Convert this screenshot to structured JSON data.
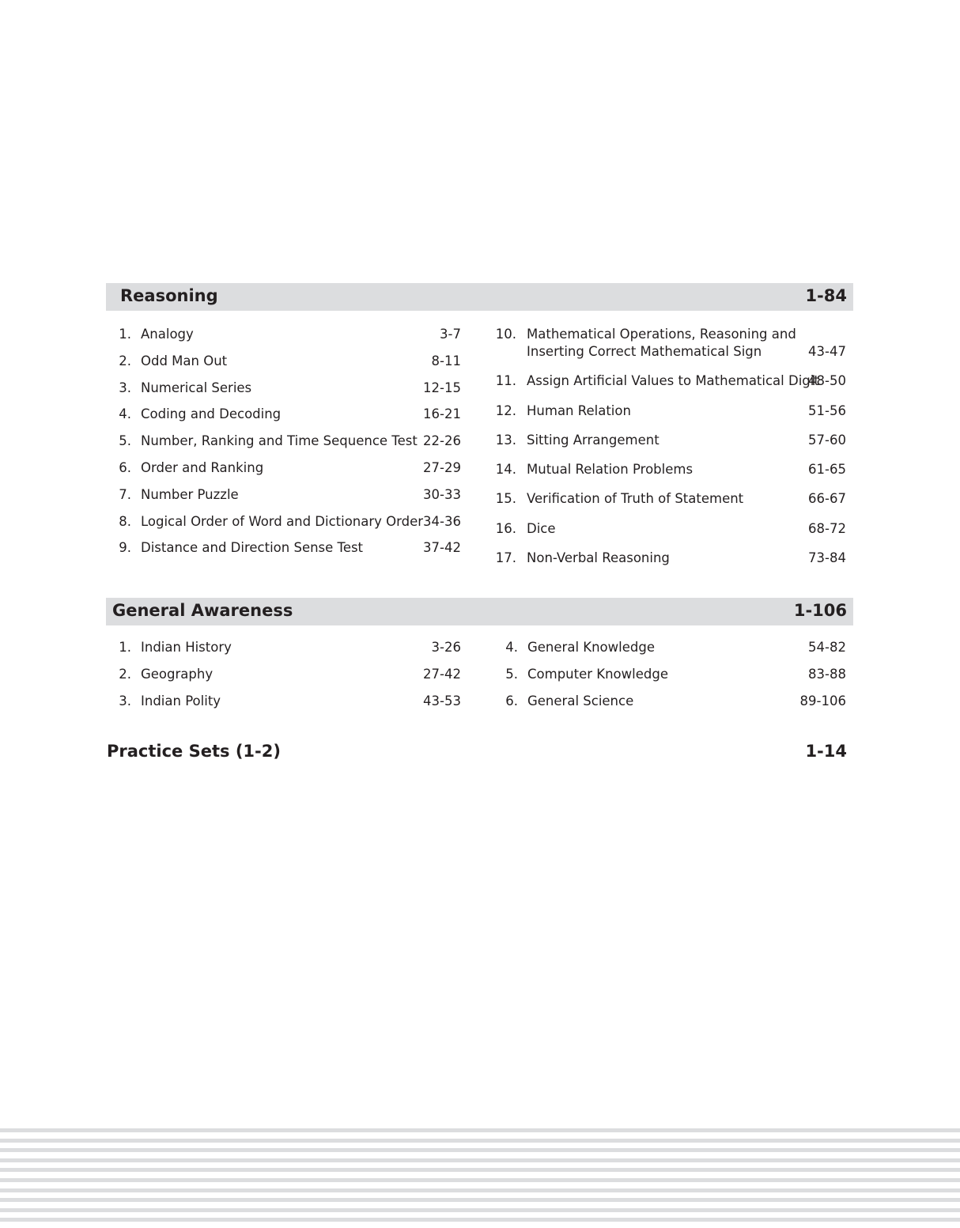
{
  "sections": [
    {
      "title": "Reasoning",
      "pages": "1-84",
      "left": [
        {
          "num": "1.",
          "title": "Analogy",
          "pages": "3-7"
        },
        {
          "num": "2.",
          "title": "Odd Man Out",
          "pages": "8-11"
        },
        {
          "num": "3.",
          "title": "Numerical Series",
          "pages": "12-15"
        },
        {
          "num": "4.",
          "title": "Coding and Decoding",
          "pages": "16-21"
        },
        {
          "num": "5.",
          "title": "Number, Ranking and Time Sequence Test",
          "pages": "22-26"
        },
        {
          "num": "6.",
          "title": "Order and Ranking",
          "pages": "27-29"
        },
        {
          "num": "7.",
          "title": "Number Puzzle",
          "pages": "30-33"
        },
        {
          "num": "8.",
          "title": "Logical Order of Word and Dictionary Order",
          "pages": "34-36"
        },
        {
          "num": "9.",
          "title": "Distance and Direction Sense Test",
          "pages": "37-42"
        }
      ],
      "right": [
        {
          "num": "10.",
          "title": "Mathematical Operations, Reasoning and\nInserting Correct Mathematical Sign",
          "pages": "43-47"
        },
        {
          "num": "11.",
          "title": "Assign Artificial Values to Mathematical Digit",
          "pages": "48-50"
        },
        {
          "num": "12.",
          "title": "Human Relation",
          "pages": "51-56"
        },
        {
          "num": "13.",
          "title": "Sitting Arrangement",
          "pages": "57-60"
        },
        {
          "num": "14.",
          "title": "Mutual Relation Problems",
          "pages": "61-65"
        },
        {
          "num": "15.",
          "title": "Verification of Truth of Statement",
          "pages": "66-67"
        },
        {
          "num": "16.",
          "title": "Dice",
          "pages": "68-72"
        },
        {
          "num": "17.",
          "title": "Non-Verbal Reasoning",
          "pages": "73-84"
        }
      ]
    },
    {
      "title": "General Awareness",
      "pages": "1-106",
      "left": [
        {
          "num": "1.",
          "title": "Indian History",
          "pages": "3-26"
        },
        {
          "num": "2.",
          "title": "Geography",
          "pages": "27-42"
        },
        {
          "num": "3.",
          "title": "Indian Polity",
          "pages": "43-53"
        }
      ],
      "right": [
        {
          "num": "4.",
          "title": "General Knowledge",
          "pages": "54-82"
        },
        {
          "num": "5.",
          "title": "Computer Knowledge",
          "pages": "83-88"
        },
        {
          "num": "6.",
          "title": "General Science",
          "pages": "89-106"
        }
      ]
    }
  ],
  "practice": {
    "title": "Practice Sets (1-2)",
    "pages": "1-14"
  }
}
